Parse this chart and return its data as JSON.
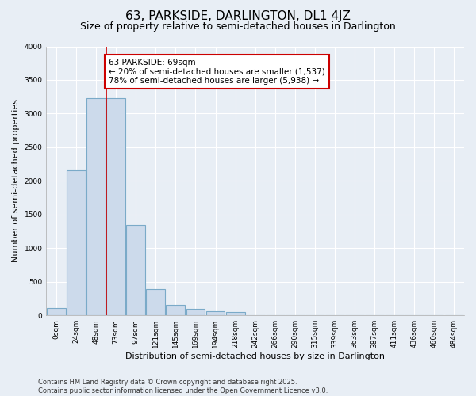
{
  "title": "63, PARKSIDE, DARLINGTON, DL1 4JZ",
  "subtitle": "Size of property relative to semi-detached houses in Darlington",
  "xlabel": "Distribution of semi-detached houses by size in Darlington",
  "ylabel": "Number of semi-detached properties",
  "footnote": "Contains HM Land Registry data © Crown copyright and database right 2025.\nContains public sector information licensed under the Open Government Licence v3.0.",
  "categories": [
    "0sqm",
    "24sqm",
    "48sqm",
    "73sqm",
    "97sqm",
    "121sqm",
    "145sqm",
    "169sqm",
    "194sqm",
    "218sqm",
    "242sqm",
    "266sqm",
    "290sqm",
    "315sqm",
    "339sqm",
    "363sqm",
    "387sqm",
    "411sqm",
    "436sqm",
    "460sqm",
    "484sqm"
  ],
  "bar_values": [
    110,
    2160,
    3230,
    3230,
    1340,
    390,
    160,
    95,
    60,
    50,
    0,
    0,
    0,
    0,
    0,
    0,
    0,
    0,
    0,
    0,
    0
  ],
  "bar_color": "#ccdaeb",
  "bar_edge_color": "#7aaac8",
  "ylim": [
    0,
    4000
  ],
  "yticks": [
    0,
    500,
    1000,
    1500,
    2000,
    2500,
    3000,
    3500,
    4000
  ],
  "property_size": 69,
  "property_label": "63 PARKSIDE: 69sqm",
  "pct_smaller": 20,
  "pct_larger": 78,
  "count_smaller": 1537,
  "count_larger": 5938,
  "vline_color": "#cc0000",
  "annotation_box_color": "#ffffff",
  "annotation_box_edge_color": "#cc0000",
  "background_color": "#e8eef5",
  "grid_color": "#ffffff",
  "title_fontsize": 11,
  "subtitle_fontsize": 9,
  "axis_label_fontsize": 8,
  "tick_fontsize": 6.5,
  "annotation_fontsize": 7.5,
  "footnote_fontsize": 6
}
